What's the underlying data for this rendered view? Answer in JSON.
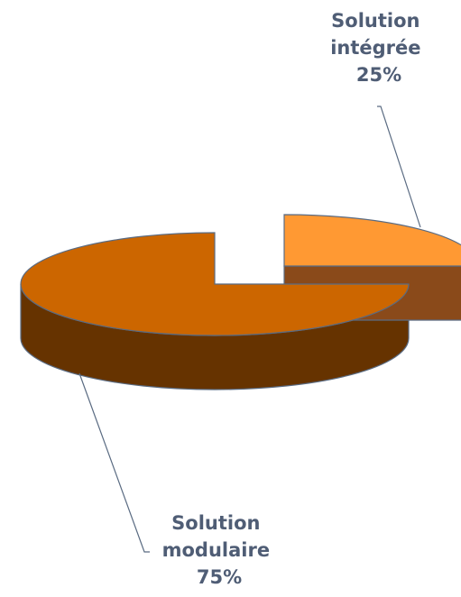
{
  "chart_data": {
    "type": "pie",
    "style": "3d-exploded",
    "title": "",
    "legend": "none",
    "slices": [
      {
        "name": "Solution modulaire",
        "label_lines": [
          "Solution",
          "modulaire",
          "75%"
        ],
        "value": 75,
        "unit": "%",
        "top_color": "#CC6600",
        "side_color": "#663300"
      },
      {
        "name": "Solution intégrée",
        "label_lines": [
          "Solution",
          "intégrée",
          "25%"
        ],
        "value": 25,
        "unit": "%",
        "top_color": "#FF9933",
        "side_color": "#8A4A1A"
      }
    ],
    "label_color": "#4F5D75",
    "edge_color": "#5A6B82"
  }
}
